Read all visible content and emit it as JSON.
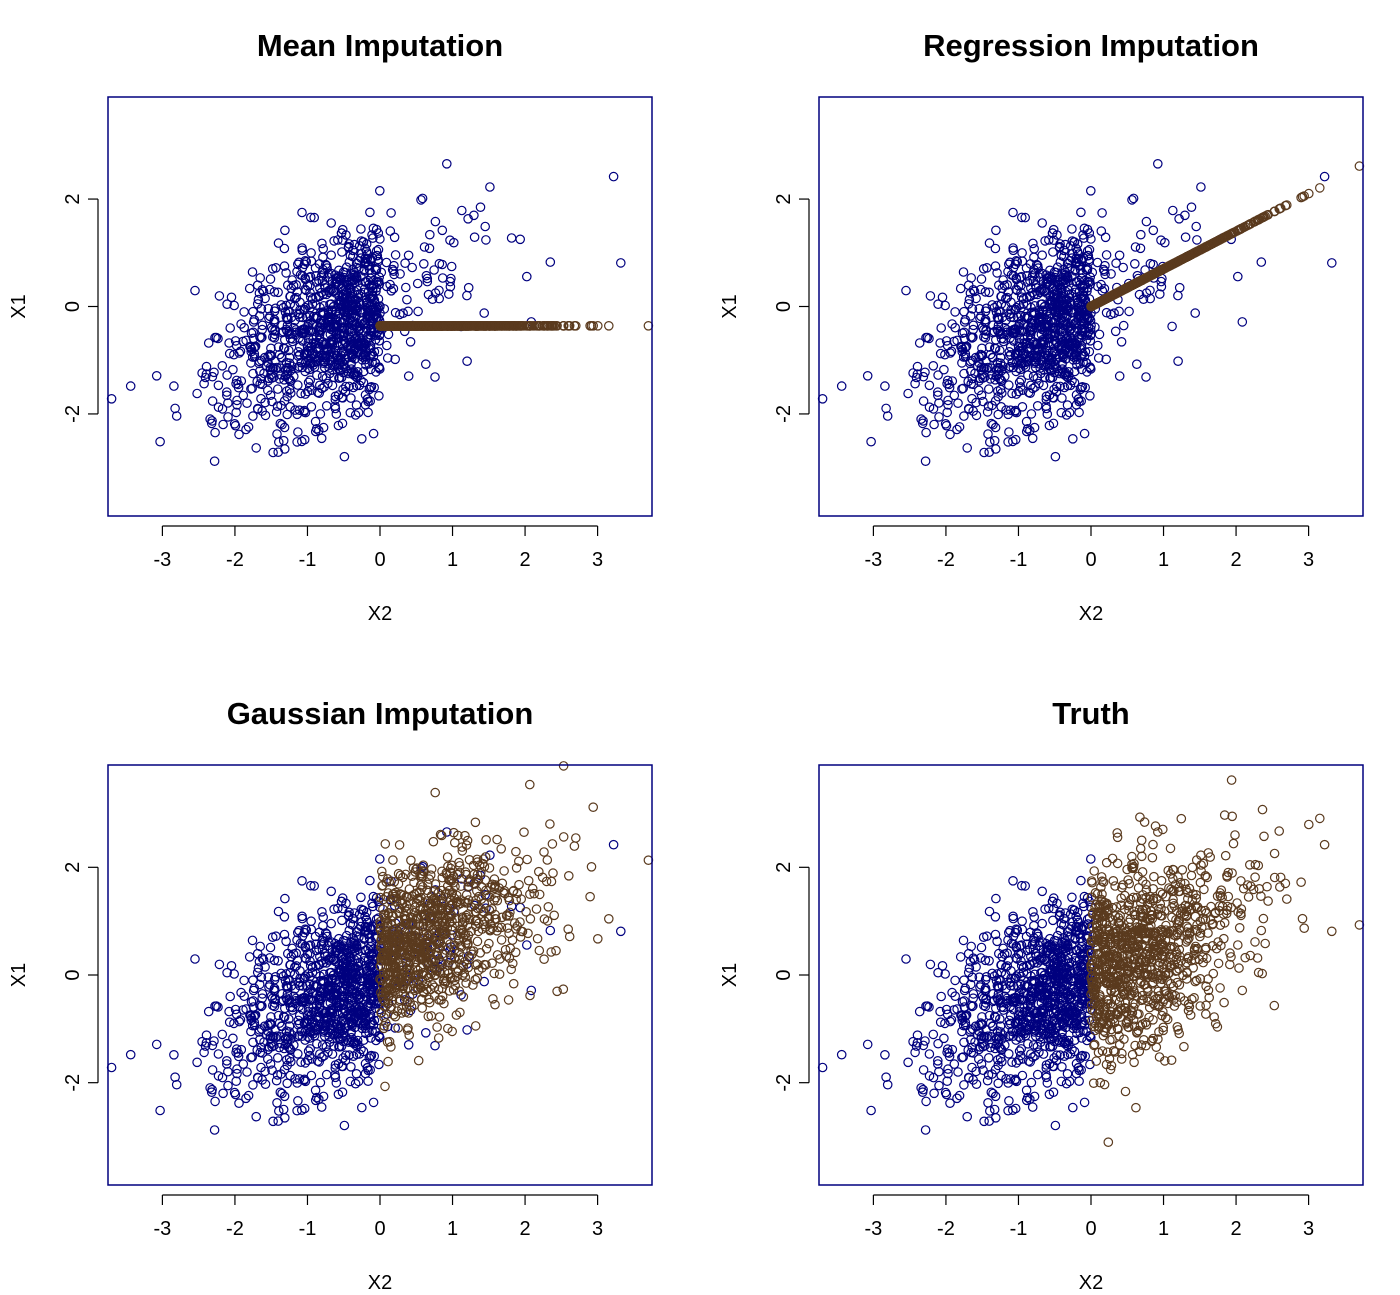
{
  "colors": {
    "observed": "#00007f",
    "imputed": "#5a3a1e",
    "frame": "#00007f",
    "text": "#000000"
  },
  "chart_data": [
    {
      "type": "scatter",
      "title": "Mean Imputation",
      "xlabel": "X2",
      "ylabel": "X1",
      "xlim": [
        -3.75,
        3.75
      ],
      "ylim": [
        -3.9,
        3.9
      ],
      "xticks": [
        -3,
        -2,
        -1,
        0,
        1,
        2,
        3
      ],
      "yticks": [
        -2,
        0,
        2
      ],
      "imputation": "mean",
      "series": [
        {
          "role": "observed",
          "color": "#00007f",
          "region": "X2 < 0, plus X2 > 0 points with X1 observed"
        },
        {
          "role": "imputed",
          "color": "#5a3a1e",
          "rule": "X1 = -0.36 for every missing X1 (X2 from 0 to 3.5)"
        }
      ]
    },
    {
      "type": "scatter",
      "title": "Regression Imputation",
      "xlabel": "X2",
      "ylabel": "X1",
      "xlim": [
        -3.75,
        3.75
      ],
      "ylim": [
        -3.9,
        3.9
      ],
      "xticks": [
        -3,
        -2,
        -1,
        0,
        1,
        2,
        3
      ],
      "yticks": [
        -2,
        0,
        2
      ],
      "imputation": "regression",
      "series": [
        {
          "role": "observed",
          "color": "#00007f"
        },
        {
          "role": "imputed",
          "color": "#5a3a1e",
          "rule": "X1 = 0.7 * X2 for missing X1 (X2 from 0 to 3.5)"
        }
      ]
    },
    {
      "type": "scatter",
      "title": "Gaussian Imputation",
      "xlabel": "X2",
      "ylabel": "X1",
      "xlim": [
        -3.75,
        3.75
      ],
      "ylim": [
        -3.9,
        3.9
      ],
      "xticks": [
        -3,
        -2,
        -1,
        0,
        1,
        2,
        3
      ],
      "yticks": [
        -2,
        0,
        2
      ],
      "imputation": "gaussian",
      "series": [
        {
          "role": "observed",
          "color": "#00007f"
        },
        {
          "role": "imputed",
          "color": "#5a3a1e",
          "rule": "X1 = 0.35 + 0.5 * X2 + noise for missing X1"
        }
      ]
    },
    {
      "type": "scatter",
      "title": "Truth",
      "xlabel": "X2",
      "ylabel": "X1",
      "xlim": [
        -3.75,
        3.75
      ],
      "ylim": [
        -3.9,
        3.9
      ],
      "xticks": [
        -3,
        -2,
        -1,
        0,
        1,
        2,
        3
      ],
      "yticks": [
        -2,
        0,
        2
      ],
      "imputation": "truth",
      "series": [
        {
          "role": "observed",
          "color": "#00007f"
        },
        {
          "role": "true-values",
          "color": "#5a3a1e",
          "rule": "true X1 values for X2 > 0"
        }
      ]
    }
  ]
}
